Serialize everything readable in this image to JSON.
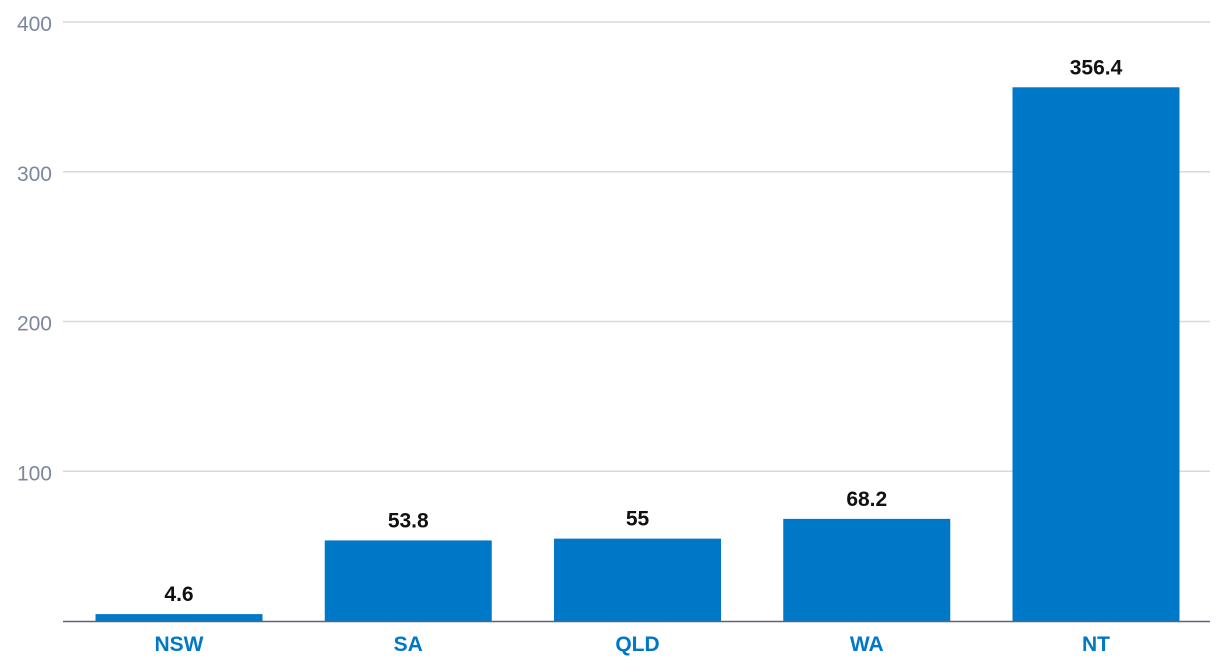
{
  "chart_data": {
    "type": "bar",
    "categories": [
      "NSW",
      "SA",
      "QLD",
      "WA",
      "NT"
    ],
    "values": [
      4.6,
      53.8,
      55,
      68.2,
      356.4
    ],
    "value_labels": [
      "4.6",
      "53.8",
      "55",
      "68.2",
      "356.4"
    ],
    "y_ticks": [
      100,
      200,
      300,
      400
    ],
    "y_tick_labels": [
      "100",
      "200",
      "300",
      "400"
    ],
    "ylim": [
      0,
      400
    ],
    "grid": true,
    "legend": "none",
    "title": "",
    "xlabel": "",
    "ylabel": "",
    "colors": {
      "bar": "#0078c8",
      "category_label": "#0078c8",
      "value_label": "#111111",
      "tick_label": "#7d879c",
      "gridline": "#d5d9e0",
      "baseline": "#5a6478"
    }
  }
}
